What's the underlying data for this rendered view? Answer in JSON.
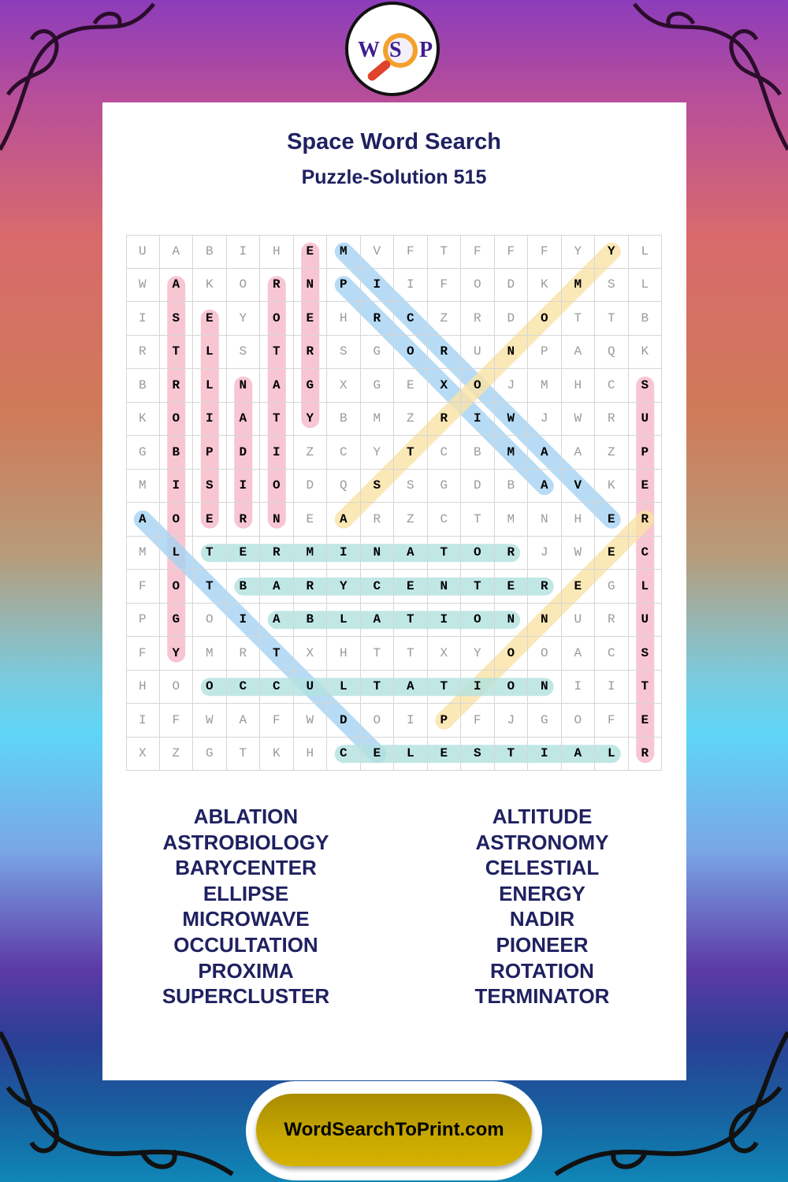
{
  "logo": {
    "letters": [
      "W",
      "S",
      "P"
    ]
  },
  "header": {
    "title": "Space Word Search",
    "subtitle": "Puzzle-Solution 515"
  },
  "grid": {
    "rows": [
      "UABIHEMVFTFFFYYL",
      "WAKORNPIIFODKMSL",
      "ISEYOEHRCZRDOTTB",
      "RTLSTRSGORUNPAQK",
      "BRLNAGXGEXOJMHCS",
      "KOIATYBMZRIWJWRU",
      "GBPDIZCYTCBMAAZP",
      "MISIODQSSGDBAVKE",
      "AOERNEARZCTMNHER",
      "MLTERMINATORJWEC",
      "FOTBARYCENTEREGL",
      "PGOIABLATIONNURU",
      "FYMRTXHTTXYOOACS",
      "HOOCCULTATIONIIT",
      "IFWAFWDOIPFJGOFE",
      "XZGTKHCELESTIALR"
    ],
    "solutions": [
      {
        "word": "ASTROBIOLOGY",
        "start": [
          1,
          1
        ],
        "end": [
          12,
          1
        ],
        "color": "#f6b8c8"
      },
      {
        "word": "ELLIPSE",
        "start": [
          2,
          2
        ],
        "end": [
          8,
          2
        ],
        "color": "#f6b8c8"
      },
      {
        "word": "NADIR",
        "start": [
          4,
          3
        ],
        "end": [
          8,
          3
        ],
        "color": "#f6b8c8"
      },
      {
        "word": "ROTATION",
        "start": [
          1,
          4
        ],
        "end": [
          8,
          4
        ],
        "color": "#f6b8c8"
      },
      {
        "word": "ENERGY",
        "start": [
          0,
          5
        ],
        "end": [
          5,
          5
        ],
        "color": "#f6b8c8"
      },
      {
        "word": "SUPERCLUSTER",
        "start": [
          4,
          15
        ],
        "end": [
          15,
          15
        ],
        "color": "#f6b8c8"
      },
      {
        "word": "MICROWAVE",
        "start": [
          0,
          6
        ],
        "end": [
          8,
          14
        ],
        "color": "#a6d3f3"
      },
      {
        "word": "PROXIMA",
        "start": [
          1,
          6
        ],
        "end": [
          7,
          12
        ],
        "color": "#a6d3f3"
      },
      {
        "word": "ALTITUDE",
        "start": [
          8,
          0
        ],
        "end": [
          15,
          7
        ],
        "color": "#a6d3f3"
      },
      {
        "word": "ASTRONOMY",
        "start": [
          8,
          6
        ],
        "end": [
          0,
          14
        ],
        "color": "#fbe3a6"
      },
      {
        "word": "PIONEER",
        "start": [
          14,
          9
        ],
        "end": [
          8,
          15
        ],
        "color": "#fbe3a6"
      },
      {
        "word": "TERMINATOR",
        "start": [
          9,
          2
        ],
        "end": [
          9,
          11
        ],
        "color": "#b2e2df"
      },
      {
        "word": "BARYCENTER",
        "start": [
          10,
          3
        ],
        "end": [
          10,
          12
        ],
        "color": "#b2e2df"
      },
      {
        "word": "ABLATION",
        "start": [
          11,
          4
        ],
        "end": [
          11,
          11
        ],
        "color": "#b2e2df"
      },
      {
        "word": "OCCULTATION",
        "start": [
          13,
          2
        ],
        "end": [
          13,
          12
        ],
        "color": "#b2e2df"
      },
      {
        "word": "CELESTIAL",
        "start": [
          15,
          6
        ],
        "end": [
          15,
          14
        ],
        "color": "#b2e2df"
      }
    ]
  },
  "word_list": {
    "left": [
      "ABLATION",
      "ASTROBIOLOGY",
      "BARYCENTER",
      "ELLIPSE",
      "MICROWAVE",
      "OCCULTATION",
      "PROXIMA",
      "SUPERCLUSTER"
    ],
    "right": [
      "ALTITUDE",
      "ASTRONOMY",
      "CELESTIAL",
      "ENERGY",
      "NADIR",
      "PIONEER",
      "ROTATION",
      "TERMINATOR"
    ]
  },
  "footer": {
    "site": "WordSearchToPrint.com"
  },
  "colors": {
    "title": "#1f2160",
    "footer_button": "#c7a800"
  }
}
